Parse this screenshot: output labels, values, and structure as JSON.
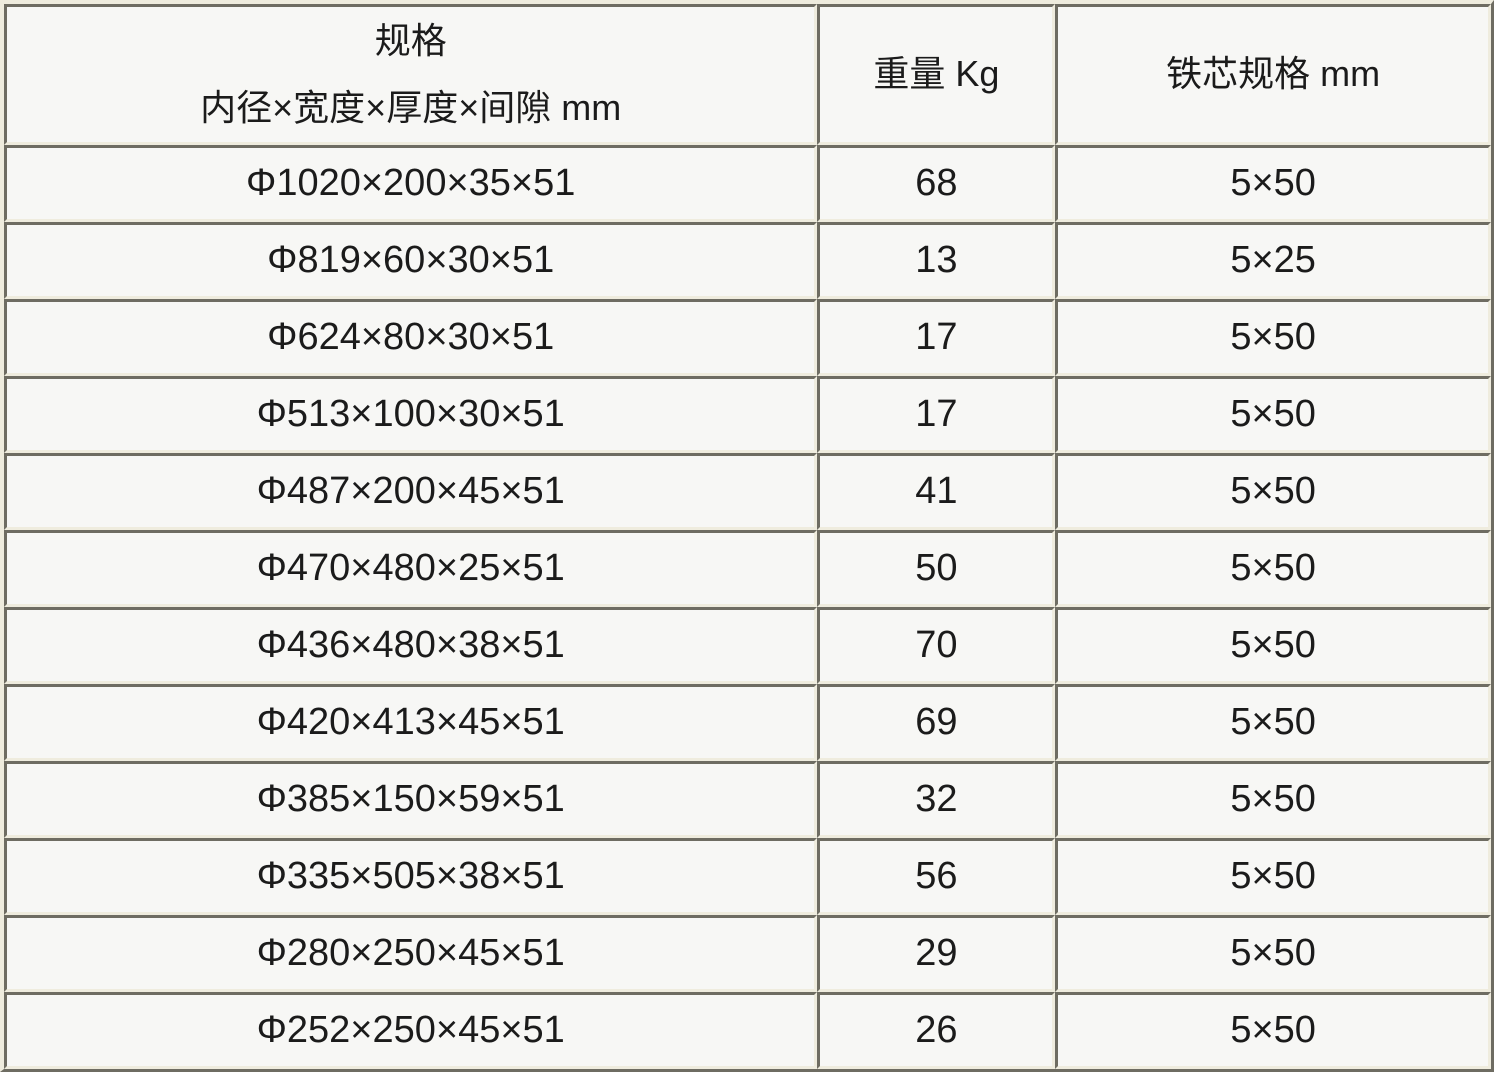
{
  "table": {
    "header": {
      "spec_line1": "规格",
      "spec_line2": "内径×宽度×厚度×间隙 mm",
      "weight": "重量 Kg",
      "core": "铁芯规格 mm"
    },
    "rows": [
      {
        "spec": "Φ1020×200×35×51",
        "weight": "68",
        "core": "5×50"
      },
      {
        "spec": "Φ819×60×30×51",
        "weight": "13",
        "core": "5×25"
      },
      {
        "spec": "Φ624×80×30×51",
        "weight": "17",
        "core": "5×50"
      },
      {
        "spec": "Φ513×100×30×51",
        "weight": "17",
        "core": "5×50"
      },
      {
        "spec": "Φ487×200×45×51",
        "weight": "41",
        "core": "5×50"
      },
      {
        "spec": "Φ470×480×25×51",
        "weight": "50",
        "core": "5×50"
      },
      {
        "spec": "Φ436×480×38×51",
        "weight": "70",
        "core": "5×50"
      },
      {
        "spec": "Φ420×413×45×51",
        "weight": "69",
        "core": "5×50"
      },
      {
        "spec": "Φ385×150×59×51",
        "weight": "32",
        "core": "5×50"
      },
      {
        "spec": "Φ335×505×38×51",
        "weight": "56",
        "core": "5×50"
      },
      {
        "spec": "Φ280×250×45×51",
        "weight": "29",
        "core": "5×50"
      },
      {
        "spec": "Φ252×250×45×51",
        "weight": "26",
        "core": "5×50"
      }
    ],
    "colors": {
      "border_dark": "#6e6c62",
      "border_light": "#efecde",
      "cell_background": "#f7f7f5",
      "text": "#1b1b1b"
    }
  }
}
